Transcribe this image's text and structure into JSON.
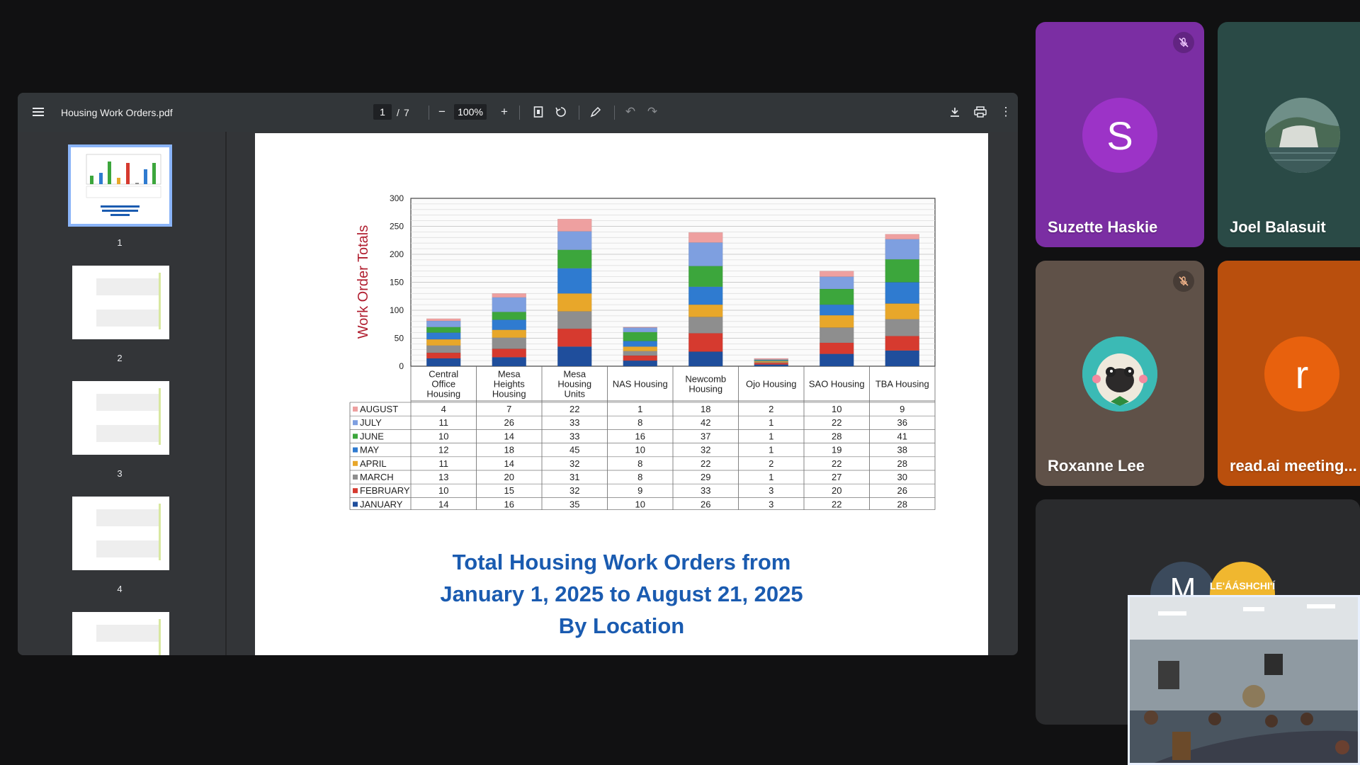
{
  "viewer": {
    "file_title": "Housing Work Orders.pdf",
    "page_current": "1",
    "page_total": "7",
    "zoom": "100%",
    "thumbnails": [
      "1",
      "2",
      "3",
      "4"
    ]
  },
  "chart_data": {
    "type": "bar",
    "stacked": true,
    "ylabel": "Work Order Totals",
    "ylim": [
      0,
      300
    ],
    "yticks": [
      "0",
      "50",
      "100",
      "150",
      "200",
      "250",
      "300"
    ],
    "grid": true,
    "categories": [
      "Central Office Housing",
      "Mesa Heights Housing",
      "Mesa Housing Units",
      "NAS Housing",
      "Newcomb Housing",
      "Ojo Housing",
      "SAO Housing",
      "TBA Housing"
    ],
    "series": [
      {
        "name": "JANUARY",
        "color": "#1f4e9c",
        "values": [
          14,
          16,
          35,
          10,
          26,
          3,
          22,
          28
        ]
      },
      {
        "name": "FEBRUARY",
        "color": "#d63a2f",
        "values": [
          10,
          15,
          32,
          9,
          33,
          3,
          20,
          26
        ]
      },
      {
        "name": "MARCH",
        "color": "#8e8e8e",
        "values": [
          13,
          20,
          31,
          8,
          29,
          1,
          27,
          30
        ]
      },
      {
        "name": "APRIL",
        "color": "#e8a72a",
        "values": [
          11,
          14,
          32,
          8,
          22,
          2,
          22,
          28
        ]
      },
      {
        "name": "MAY",
        "color": "#2f7bd0",
        "values": [
          12,
          18,
          45,
          10,
          32,
          1,
          19,
          38
        ]
      },
      {
        "name": "JUNE",
        "color": "#3ca63c",
        "values": [
          10,
          14,
          33,
          16,
          37,
          1,
          28,
          41
        ]
      },
      {
        "name": "JULY",
        "color": "#7e9fe0",
        "values": [
          11,
          26,
          33,
          8,
          42,
          1,
          22,
          36
        ]
      },
      {
        "name": "AUGUST",
        "color": "#eea0a0",
        "values": [
          4,
          7,
          22,
          1,
          18,
          2,
          10,
          9
        ]
      }
    ],
    "table_row_order": [
      "AUGUST",
      "JULY",
      "JUNE",
      "MAY",
      "APRIL",
      "MARCH",
      "FEBRUARY",
      "JANUARY"
    ],
    "title_lines": [
      "Total Housing Work Orders from",
      "January 1, 2025 to August 21, 2025",
      "By Location"
    ]
  },
  "participants": {
    "p1": {
      "name": "Suzette Haskie",
      "initial": "S",
      "bg": "#7b2ea3",
      "avatar_color": "#9c33c7"
    },
    "p2": {
      "name": "Joel Balasuit",
      "bg": "#2a4a46"
    },
    "p3": {
      "name": "Roxanne Lee",
      "bg": "#5f5148"
    },
    "p4": {
      "name": "read.ai meeting...",
      "initial": "r",
      "bg": "#b94f0d",
      "avatar_color": "#e8610d"
    },
    "p5": {
      "initial": "M",
      "badge_text": "LE'ÁÁSHCHI'Í"
    }
  }
}
